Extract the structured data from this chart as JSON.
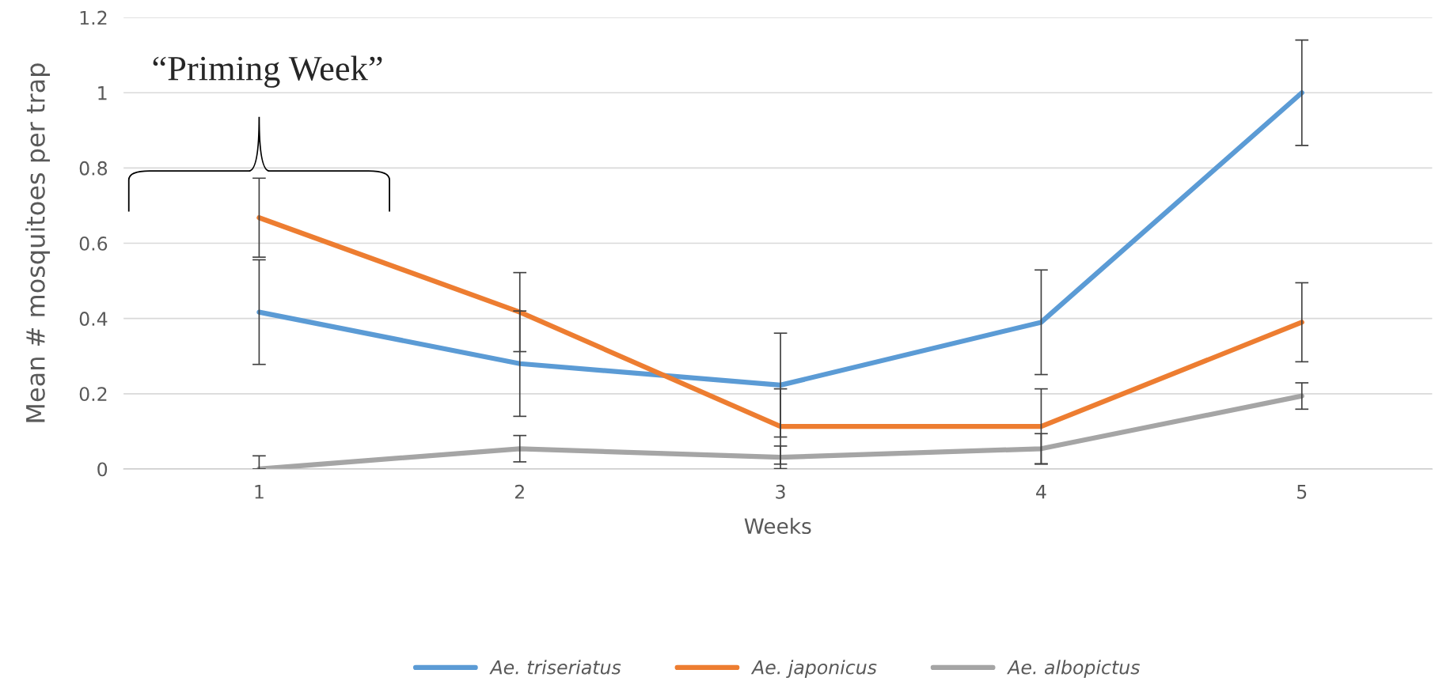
{
  "chart_data": {
    "type": "line",
    "xlabel": "Weeks",
    "ylabel": "Mean # mosquitoes per trap",
    "categories": [
      "1",
      "2",
      "3",
      "4",
      "5"
    ],
    "ylim": [
      0,
      1.2
    ],
    "yticks": [
      0,
      0.2,
      0.4,
      0.6,
      0.8,
      1,
      1.2
    ],
    "grid": "y",
    "legend": "bottom",
    "marker": "none",
    "line_style": "solid",
    "annotations": [
      "“Priming Week”"
    ],
    "series": [
      {
        "name": "Ae. triseriatus",
        "color": "#5b9bd5",
        "values": [
          0.417,
          0.28,
          0.223,
          0.39,
          1.0
        ],
        "errors": [
          0.139,
          0.14,
          0.138,
          0.139,
          0.14
        ]
      },
      {
        "name": "Ae. japonicus",
        "color": "#ed7d31",
        "values": [
          0.668,
          0.417,
          0.113,
          0.113,
          0.39
        ],
        "errors": [
          0.105,
          0.105,
          0.1,
          0.1,
          0.105
        ]
      },
      {
        "name": "Ae. albopictus",
        "color": "#a5a5a5",
        "values": [
          0,
          0.054,
          0.031,
          0.054,
          0.194
        ],
        "errors": [
          [
            0,
            0.035
          ],
          0.035,
          0.03,
          0.04,
          0.035
        ]
      }
    ]
  }
}
